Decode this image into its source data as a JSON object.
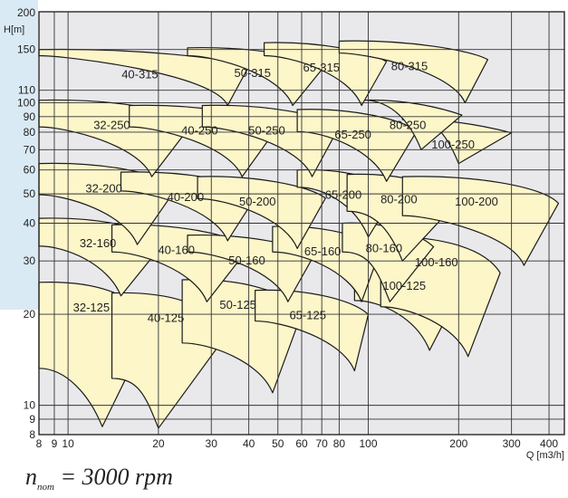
{
  "chart_data": {
    "type": "area",
    "title": "",
    "xlabel": "Q [m3/h]",
    "ylabel": "H[m]",
    "x_scale": "log",
    "y_scale": "log",
    "xlim": [
      8,
      450
    ],
    "ylim": [
      8,
      200
    ],
    "x_ticks": [
      8,
      9,
      10,
      20,
      30,
      40,
      50,
      60,
      70,
      80,
      100,
      200,
      300,
      400
    ],
    "y_ticks": [
      8,
      9,
      10,
      20,
      30,
      40,
      50,
      60,
      70,
      80,
      90,
      100,
      110,
      150,
      200
    ],
    "grid": true,
    "fill_color": "#fdf6c9",
    "plot_background": "#e9e9ec",
    "zones": [
      {
        "label": "32-125",
        "h_shutoff": 25.5,
        "q_left": 8,
        "q_right": 19,
        "q_tip": 13,
        "h_tip": 8.5
      },
      {
        "label": "40-125",
        "h_shutoff": 23.5,
        "q_left": 14,
        "q_right": 34,
        "q_tip": 20,
        "h_tip": 8.4
      },
      {
        "label": "50-125",
        "h_shutoff": 26,
        "q_left": 24,
        "q_right": 60,
        "q_tip": 48,
        "h_tip": 11
      },
      {
        "label": "65-125",
        "h_shutoff": 24,
        "q_left": 42,
        "q_right": 100,
        "q_tip": 90,
        "h_tip": 13
      },
      {
        "label": "100-125",
        "h_shutoff": 30,
        "q_left": 90,
        "q_right": 205,
        "q_tip": 160,
        "h_tip": 15.2
      },
      {
        "label": "100-160",
        "h_shutoff": 36,
        "q_left": 110,
        "q_right": 275,
        "q_tip": 215,
        "h_tip": 14.5
      },
      {
        "label": "32-160",
        "h_shutoff": 41.5,
        "q_left": 8,
        "q_right": 21,
        "q_tip": 15,
        "h_tip": 23
      },
      {
        "label": "40-160",
        "h_shutoff": 39.5,
        "q_left": 14,
        "q_right": 40,
        "q_tip": 29,
        "h_tip": 22
      },
      {
        "label": "50-160",
        "h_shutoff": 36.5,
        "q_left": 25,
        "q_right": 66,
        "q_tip": 54,
        "h_tip": 22
      },
      {
        "label": "65-160",
        "h_shutoff": 39,
        "q_left": 48,
        "q_right": 110,
        "q_tip": 95,
        "h_tip": 22
      },
      {
        "label": "80-160",
        "h_shutoff": 40,
        "q_left": 82,
        "q_right": 165,
        "q_tip": 118,
        "h_tip": 22
      },
      {
        "label": "32-200",
        "h_shutoff": 63,
        "q_left": 8,
        "q_right": 23,
        "q_tip": 17,
        "h_tip": 34
      },
      {
        "label": "40-200",
        "h_shutoff": 59,
        "q_left": 15,
        "q_right": 43,
        "q_tip": 34,
        "h_tip": 35
      },
      {
        "label": "50-200",
        "h_shutoff": 57,
        "q_left": 27,
        "q_right": 72,
        "q_tip": 58,
        "h_tip": 33
      },
      {
        "label": "65-200",
        "h_shutoff": 60,
        "q_left": 58,
        "q_right": 125,
        "q_tip": 100,
        "h_tip": 36
      },
      {
        "label": "80-200",
        "h_shutoff": 58,
        "q_left": 85,
        "q_right": 200,
        "q_tip": 130,
        "h_tip": 30
      },
      {
        "label": "100-200",
        "h_shutoff": 57,
        "q_left": 130,
        "q_right": 430,
        "q_tip": 330,
        "h_tip": 29
      },
      {
        "label": "32-250",
        "h_shutoff": 102,
        "q_left": 8,
        "q_right": 26,
        "q_tip": 19,
        "h_tip": 57
      },
      {
        "label": "40-250",
        "h_shutoff": 98,
        "q_left": 16,
        "q_right": 50,
        "q_tip": 38,
        "h_tip": 57
      },
      {
        "label": "50-250",
        "h_shutoff": 98,
        "q_left": 28,
        "q_right": 80,
        "q_tip": 65,
        "h_tip": 57
      },
      {
        "label": "65-250",
        "h_shutoff": 95,
        "q_left": 58,
        "q_right": 145,
        "q_tip": 115,
        "h_tip": 55
      },
      {
        "label": "100-250",
        "h_shutoff": 88,
        "q_left": 130,
        "q_right": 300,
        "q_tip": 200,
        "h_tip": 63
      },
      {
        "label": "80-250",
        "h_shutoff": 102,
        "q_left": 95,
        "q_right": 205,
        "q_tip": 150,
        "h_tip": 70
      },
      {
        "label": "40-315",
        "h_shutoff": 150,
        "q_left": 8,
        "q_right": 40,
        "q_tip": 34,
        "h_tip": 98
      },
      {
        "label": "50-315",
        "h_shutoff": 152,
        "q_left": 25,
        "q_right": 72,
        "q_tip": 56,
        "h_tip": 98
      },
      {
        "label": "65-315",
        "h_shutoff": 158,
        "q_left": 45,
        "q_right": 115,
        "q_tip": 95,
        "h_tip": 98
      },
      {
        "label": "80-315",
        "h_shutoff": 160,
        "q_left": 80,
        "q_right": 250,
        "q_tip": 210,
        "h_tip": 100
      }
    ]
  },
  "footnote": {
    "symbol": "n",
    "subscript": "nom",
    "text": " = 3000 rpm"
  }
}
